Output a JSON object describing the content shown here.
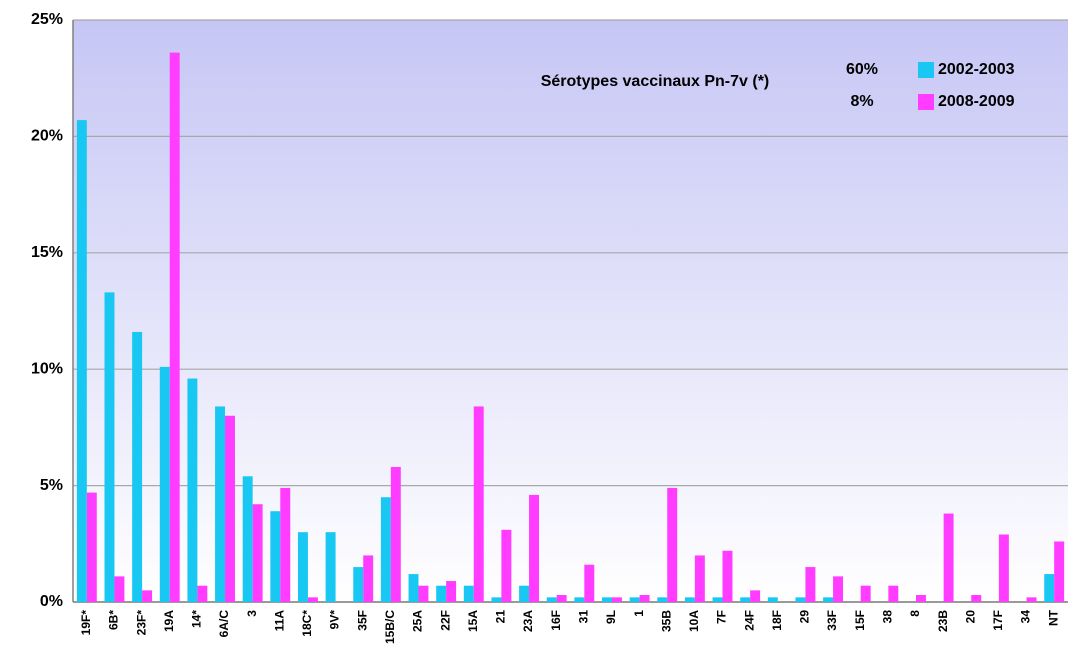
{
  "chart_data": {
    "type": "bar",
    "annotation": "Sérotypes vaccinaux Pn-7v (*)",
    "legend_notes": [
      "60%",
      "8%"
    ],
    "categories": [
      "19F*",
      "6B*",
      "23F*",
      "19A",
      "14*",
      "6A/C",
      "3",
      "11A",
      "18C*",
      "9V*",
      "35F",
      "15B/C",
      "25A",
      "22F",
      "15A",
      "21",
      "23A",
      "16F",
      "31",
      "9L",
      "1",
      "35B",
      "10A",
      "7F",
      "24F",
      "18F",
      "29",
      "33F",
      "15F",
      "38",
      "8",
      "23B",
      "20",
      "17F",
      "34",
      "NT"
    ],
    "series": [
      {
        "name": "2002-2003",
        "color": "#19c8f2",
        "values": [
          20.7,
          13.3,
          11.6,
          10.1,
          9.6,
          8.4,
          5.4,
          3.9,
          3.0,
          3.0,
          1.5,
          4.5,
          1.2,
          0.7,
          0.7,
          0.2,
          0.7,
          0.2,
          0.2,
          0.2,
          0.2,
          0.2,
          0.2,
          0.2,
          0.2,
          0.2,
          0.2,
          0.2,
          0,
          0,
          0,
          0,
          0,
          0,
          0,
          1.2
        ]
      },
      {
        "name": "2008-2009",
        "color": "#ff3cff",
        "values": [
          4.7,
          1.1,
          0.5,
          23.6,
          0.7,
          8.0,
          4.2,
          4.9,
          0.2,
          0,
          2.0,
          5.8,
          0.7,
          0.9,
          8.4,
          3.1,
          4.6,
          0.3,
          1.6,
          0.2,
          0.3,
          4.9,
          2.0,
          2.2,
          0.5,
          0,
          1.5,
          1.1,
          0.7,
          0.7,
          0.3,
          3.8,
          0.3,
          2.9,
          0.2,
          2.6
        ]
      }
    ],
    "ylim": [
      0,
      25
    ],
    "yticks": [
      {
        "value": 0,
        "label": "0%"
      },
      {
        "value": 5,
        "label": "5%"
      },
      {
        "value": 10,
        "label": "10%"
      },
      {
        "value": 15,
        "label": "15%"
      },
      {
        "value": 20,
        "label": "20%"
      },
      {
        "value": 25,
        "label": "25%"
      }
    ],
    "grid": true
  }
}
